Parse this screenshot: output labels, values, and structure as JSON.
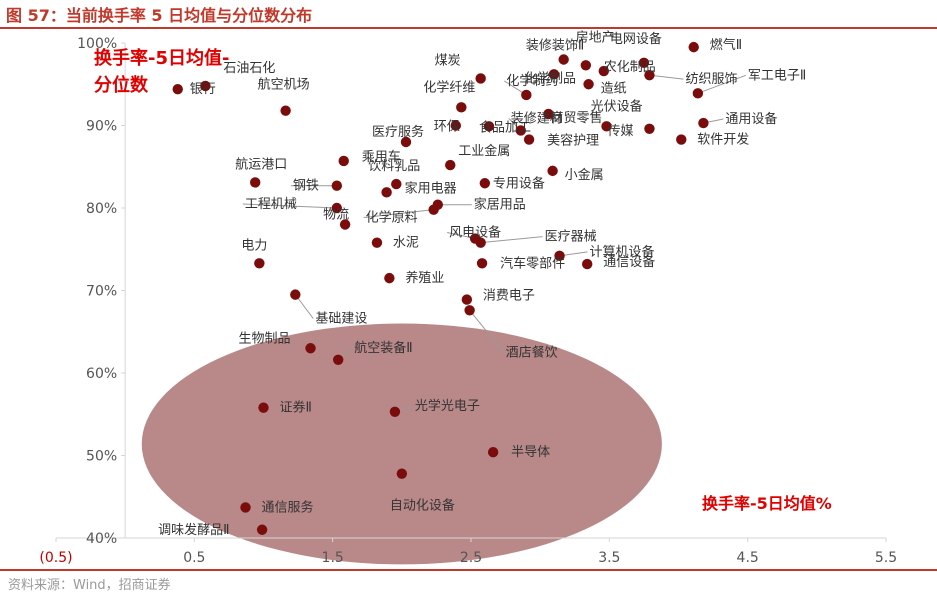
{
  "header": {
    "figure_title": "图 57：当前换手率 5 日均值与分位数分布"
  },
  "footer": {
    "source": "资料来源：Wind，招商证券"
  },
  "colors": {
    "accent": "#c0392b",
    "point": "#7a0c0c",
    "ellipse": "#9e5a5c",
    "annotation": "#e00000"
  },
  "chart_data": {
    "type": "scatter",
    "xlabel": "换手率-5日均值%",
    "ylabel": "换手率-5日均值-分位数",
    "xlim": [
      -0.5,
      5.5
    ],
    "ylim": [
      0.4,
      1.0
    ],
    "x_ticks": [
      -0.5,
      0.5,
      1.5,
      2.5,
      3.5,
      4.5,
      5.5
    ],
    "x_tick_labels": [
      "(0.5)",
      "0.5",
      "1.5",
      "2.5",
      "3.5",
      "4.5",
      "5.5"
    ],
    "y_ticks": [
      0.4,
      0.5,
      0.6,
      0.7,
      0.8,
      0.9,
      1.0
    ],
    "y_tick_labels": [
      "40%",
      "50%",
      "60%",
      "70%",
      "80%",
      "90%",
      "100%"
    ],
    "grid": false,
    "highlight_ellipse": {
      "center": [
        2.0,
        0.514
      ],
      "radius": [
        1.88,
        0.146
      ]
    },
    "points": [
      {
        "name": "煤炭",
        "x": 2.57,
        "y": 0.957
      },
      {
        "name": "房地产",
        "x": 3.17,
        "y": 0.98
      },
      {
        "name": "燃气Ⅱ",
        "x": 4.11,
        "y": 0.995
      },
      {
        "name": "电网设备",
        "x": 3.75,
        "y": 0.976
      },
      {
        "name": "装修装饰Ⅱ",
        "x": 3.33,
        "y": 0.973
      },
      {
        "name": "农化制品",
        "x": 3.46,
        "y": 0.966
      },
      {
        "name": "化学制品",
        "x": 3.1,
        "y": 0.962
      },
      {
        "name": "纺织服饰",
        "x": 3.79,
        "y": 0.961
      },
      {
        "name": "造纸",
        "x": 3.35,
        "y": 0.95
      },
      {
        "name": "军工电子Ⅱ",
        "x": 4.14,
        "y": 0.939
      },
      {
        "name": "石油石化",
        "x": 0.58,
        "y": 0.948
      },
      {
        "name": "银行",
        "x": 0.38,
        "y": 0.944
      },
      {
        "name": "航空机场",
        "x": 1.16,
        "y": 0.918
      },
      {
        "name": "化学纤维",
        "x": 2.43,
        "y": 0.922
      },
      {
        "name": "化学制药",
        "x": 2.9,
        "y": 0.937
      },
      {
        "name": "商贸零售",
        "x": 3.06,
        "y": 0.914
      },
      {
        "name": "光伏设备",
        "x": 3.48,
        "y": 0.899
      },
      {
        "name": "通用设备",
        "x": 4.18,
        "y": 0.903
      },
      {
        "name": "装修建材",
        "x": 2.86,
        "y": 0.894
      },
      {
        "name": "医疗服务",
        "x": 2.03,
        "y": 0.88
      },
      {
        "name": "环保",
        "x": 2.39,
        "y": 0.9
      },
      {
        "name": "食品加工",
        "x": 2.63,
        "y": 0.899
      },
      {
        "name": "美容护理",
        "x": 2.92,
        "y": 0.883
      },
      {
        "name": "传媒",
        "x": 3.79,
        "y": 0.896
      },
      {
        "name": "软件开发",
        "x": 4.02,
        "y": 0.883
      },
      {
        "name": "乘用车",
        "x": 1.58,
        "y": 0.857
      },
      {
        "name": "工业金属",
        "x": 2.35,
        "y": 0.852
      },
      {
        "name": "小金属",
        "x": 3.09,
        "y": 0.845
      },
      {
        "name": "航运港口",
        "x": 0.94,
        "y": 0.831
      },
      {
        "name": "钢铁",
        "x": 1.53,
        "y": 0.827
      },
      {
        "name": "饮料乳品",
        "x": 1.96,
        "y": 0.829
      },
      {
        "name": "专用设备",
        "x": 2.6,
        "y": 0.83
      },
      {
        "name": "家用电器",
        "x": 1.89,
        "y": 0.819
      },
      {
        "name": "家居用品",
        "x": 2.26,
        "y": 0.804
      },
      {
        "name": "工程机械",
        "x": 1.53,
        "y": 0.8
      },
      {
        "name": "化学原料",
        "x": 2.23,
        "y": 0.798
      },
      {
        "name": "物流",
        "x": 1.59,
        "y": 0.78
      },
      {
        "name": "风电设备",
        "x": 2.53,
        "y": 0.763
      },
      {
        "name": "医疗器械",
        "x": 2.57,
        "y": 0.758
      },
      {
        "name": "水泥",
        "x": 1.82,
        "y": 0.758
      },
      {
        "name": "计算机设备",
        "x": 3.14,
        "y": 0.742
      },
      {
        "name": "电力",
        "x": 0.97,
        "y": 0.733
      },
      {
        "name": "汽车零部件",
        "x": 2.58,
        "y": 0.733
      },
      {
        "name": "通信设备",
        "x": 3.34,
        "y": 0.732
      },
      {
        "name": "养殖业",
        "x": 1.91,
        "y": 0.715
      },
      {
        "name": "基础建设",
        "x": 1.23,
        "y": 0.695
      },
      {
        "name": "消费电子",
        "x": 2.47,
        "y": 0.689
      },
      {
        "name": "酒店餐饮",
        "x": 2.49,
        "y": 0.676
      },
      {
        "name": "生物制品",
        "x": 1.34,
        "y": 0.63
      },
      {
        "name": "航空装备Ⅱ",
        "x": 1.54,
        "y": 0.616
      },
      {
        "name": "证券Ⅱ",
        "x": 1.0,
        "y": 0.558
      },
      {
        "name": "光学光电子",
        "x": 1.95,
        "y": 0.553
      },
      {
        "name": "半导体",
        "x": 2.66,
        "y": 0.504
      },
      {
        "name": "自动化设备",
        "x": 2.0,
        "y": 0.478
      },
      {
        "name": "通信服务",
        "x": 0.87,
        "y": 0.437
      },
      {
        "name": "调味发酵品Ⅱ",
        "x": 0.99,
        "y": 0.41
      }
    ]
  }
}
